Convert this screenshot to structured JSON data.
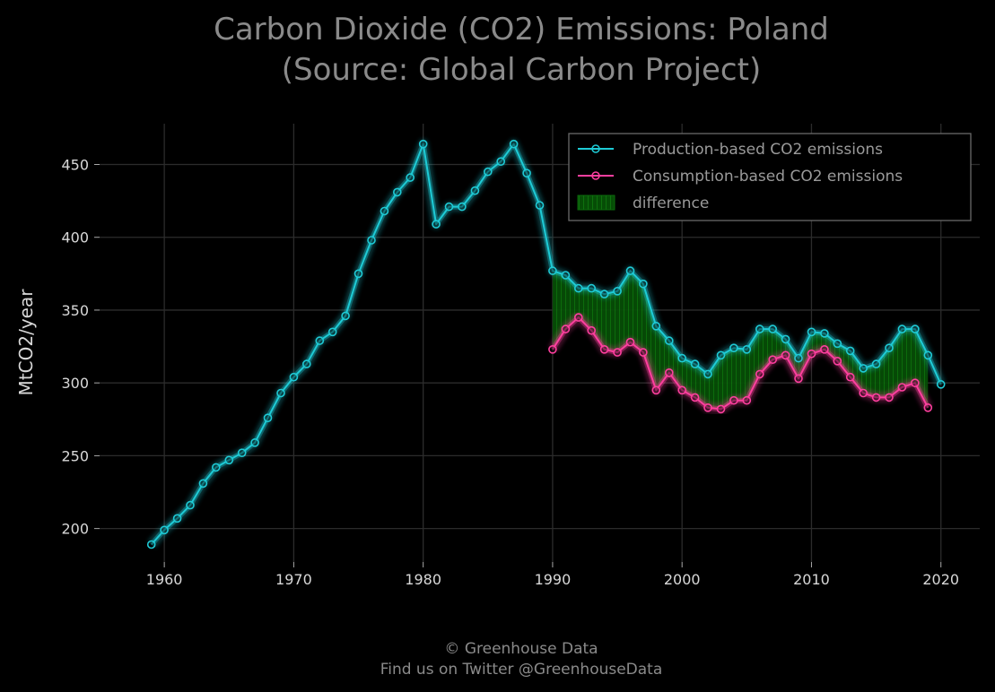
{
  "chart_data": {
    "type": "line",
    "title_line1": "Carbon Dioxide (CO2) Emissions: Poland",
    "title_line2": "(Source: Global Carbon Project)",
    "xlabel": "",
    "ylabel": "MtCO2/year",
    "xlim": [
      1955,
      2023
    ],
    "ylim": [
      177,
      478
    ],
    "xticks": [
      1960,
      1970,
      1980,
      1990,
      2000,
      2010,
      2020
    ],
    "yticks": [
      200,
      250,
      300,
      350,
      400,
      450
    ],
    "grid": true,
    "legend_position": "top-right",
    "series": [
      {
        "name": "Production-based CO2 emissions",
        "color": "#1ecbd6",
        "x": [
          1959,
          1960,
          1961,
          1962,
          1963,
          1964,
          1965,
          1966,
          1967,
          1968,
          1969,
          1970,
          1971,
          1972,
          1973,
          1974,
          1975,
          1976,
          1977,
          1978,
          1979,
          1980,
          1981,
          1982,
          1983,
          1984,
          1985,
          1986,
          1987,
          1988,
          1989,
          1990,
          1991,
          1992,
          1993,
          1994,
          1995,
          1996,
          1997,
          1998,
          1999,
          2000,
          2001,
          2002,
          2003,
          2004,
          2005,
          2006,
          2007,
          2008,
          2009,
          2010,
          2011,
          2012,
          2013,
          2014,
          2015,
          2016,
          2017,
          2018,
          2019,
          2020
        ],
        "values": [
          189,
          199,
          207,
          216,
          231,
          242,
          247,
          252,
          259,
          276,
          293,
          304,
          313,
          329,
          335,
          346,
          375,
          398,
          418,
          431,
          441,
          464,
          409,
          421,
          421,
          432,
          445,
          452,
          464,
          444,
          422,
          377,
          374,
          365,
          365,
          361,
          363,
          377,
          368,
          339,
          329,
          317,
          313,
          306,
          319,
          324,
          323,
          337,
          337,
          330,
          317,
          335,
          334,
          327,
          322,
          310,
          313,
          324,
          337,
          337,
          319,
          299
        ]
      },
      {
        "name": "Consumption-based CO2 emissions",
        "color": "#ff3f9f",
        "x": [
          1990,
          1991,
          1992,
          1993,
          1994,
          1995,
          1996,
          1997,
          1998,
          1999,
          2000,
          2001,
          2002,
          2003,
          2004,
          2005,
          2006,
          2007,
          2008,
          2009,
          2010,
          2011,
          2012,
          2013,
          2014,
          2015,
          2016,
          2017,
          2018,
          2019
        ],
        "values": [
          323,
          337,
          345,
          336,
          323,
          321,
          328,
          321,
          295,
          307,
          295,
          290,
          283,
          282,
          288,
          288,
          306,
          316,
          319,
          303,
          320,
          323,
          315,
          304,
          293,
          290,
          290,
          297,
          300,
          283
        ]
      }
    ],
    "difference": {
      "name": "difference",
      "color": "#0a8a0a"
    }
  },
  "footer": {
    "line1": "© Greenhouse Data",
    "line2": "Find us on Twitter @GreenhouseData"
  }
}
